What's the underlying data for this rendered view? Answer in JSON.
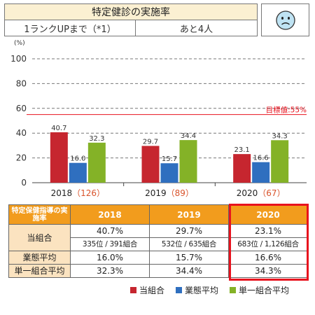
{
  "header": {
    "title": "特定健診の実施率",
    "rank_label": "1ランクUPまで（*1）",
    "remaining": "あと4人",
    "face_icon": "sad-face-icon"
  },
  "colors": {
    "own": "#c6262f",
    "industry": "#2f6fbf",
    "single": "#84b227",
    "target_line": "#e8121e",
    "header_orange": "#f29c1d",
    "label_peach": "#fbe3c0"
  },
  "chart_data": {
    "type": "bar",
    "y_unit": "(%)",
    "ylim": [
      0,
      100
    ],
    "yticks": [
      0,
      20,
      40,
      60,
      80,
      100
    ],
    "categories": [
      "2018",
      "2019",
      "2020"
    ],
    "category_suffix": [
      "（126）",
      "（89）",
      "（67）"
    ],
    "series": [
      {
        "name": "当組合",
        "values": [
          40.7,
          29.7,
          23.1
        ]
      },
      {
        "name": "業態平均",
        "values": [
          16.0,
          15.7,
          16.6
        ]
      },
      {
        "name": "単一組合平均",
        "values": [
          32.3,
          34.4,
          34.3
        ]
      }
    ],
    "target": {
      "value": 55,
      "label": "目標値:55%"
    },
    "grid": "dashed",
    "legend_position": "bottom-right"
  },
  "table": {
    "row_header": "特定保健指導の実施率",
    "years": [
      "2018",
      "2019",
      "2020"
    ],
    "own_label": "当組合",
    "own_rates": [
      "40.7%",
      "29.7%",
      "23.1%"
    ],
    "own_ranks": [
      "335位 / 391組合",
      "532位 / 635組合",
      "683位 / 1,126組合"
    ],
    "industry_label": "業態平均",
    "industry_rates": [
      "16.0%",
      "15.7%",
      "16.6%"
    ],
    "single_label": "単一組合平均",
    "single_rates": [
      "32.3%",
      "34.4%",
      "34.3%"
    ]
  },
  "legend": [
    "当組合",
    "業態平均",
    "単一組合平均"
  ]
}
